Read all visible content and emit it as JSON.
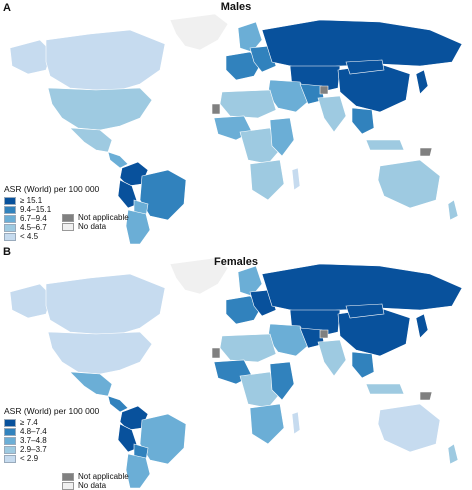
{
  "colors": {
    "c1": "#08519c",
    "c2": "#3182bd",
    "c3": "#6baed6",
    "c4": "#9ecae1",
    "c5": "#c6dbef",
    "not_applicable": "#808080",
    "no_data": "#f0f0f0",
    "border": "#ffffff"
  },
  "panels": [
    {
      "letter": "A",
      "title": "Males",
      "legend": {
        "title": "ASR (World) per 100 000",
        "classes": [
          "≥ 15.1",
          "9.4–15.1",
          "6.7–9.4",
          "4.5–6.7",
          "< 4.5"
        ],
        "not_applicable": "Not applicable",
        "no_data": "No data"
      }
    },
    {
      "letter": "B",
      "title": "Females",
      "legend": {
        "title": "ASR (World) per 100 000",
        "classes": [
          "≥ 7.4",
          "4.8–7.4",
          "3.7–4.8",
          "2.9–3.7",
          "< 2.9"
        ],
        "not_applicable": "Not applicable",
        "no_data": "No data"
      }
    }
  ]
}
